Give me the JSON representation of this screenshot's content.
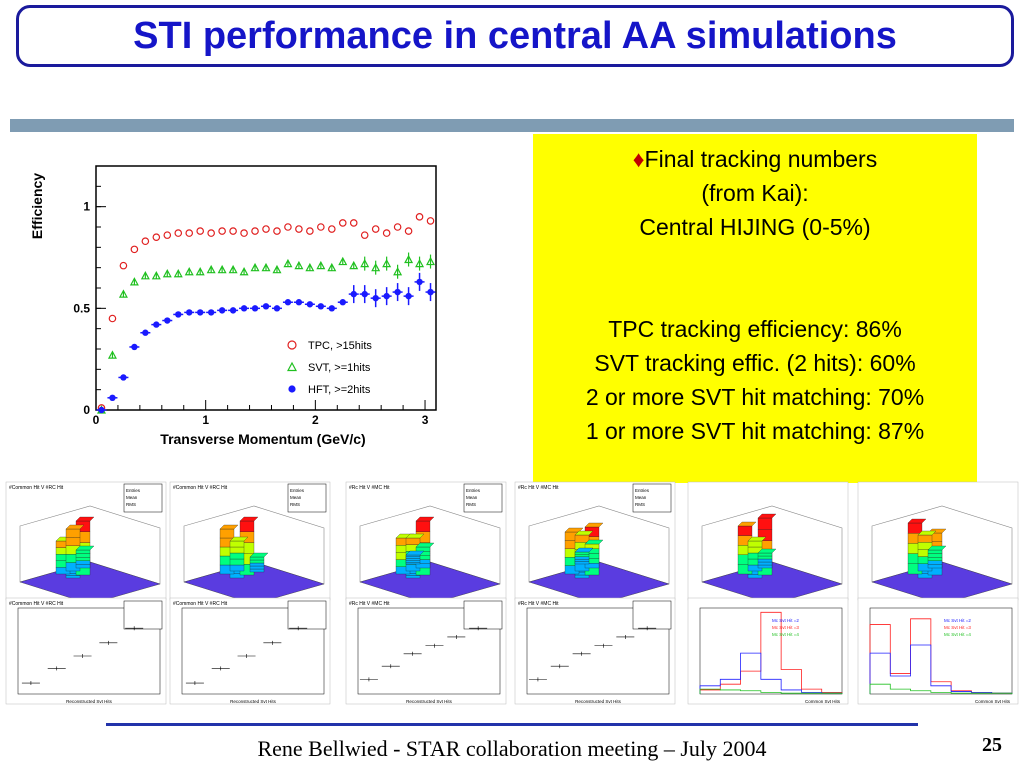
{
  "slide": {
    "title": "STI performance in central AA simulations",
    "footer": "Rene Bellwied - STAR collaboration meeting – July 2004",
    "page_number": "25"
  },
  "info": {
    "bullet": "♦",
    "lines_top": [
      "Final tracking numbers",
      "(from Kai):",
      "Central HIJING (0-5%)"
    ],
    "lines_bottom": [
      "TPC tracking efficiency: 86%",
      "SVT tracking effic. (2 hits): 60%",
      "2 or more SVT hit matching: 70%",
      "1 or more SVT hit matching: 87%"
    ],
    "background": "#ffff00"
  },
  "chart_data": {
    "type": "scatter",
    "xlabel": "Transverse Momentum (GeV/c)",
    "ylabel": "Efficiency",
    "xlim": [
      0,
      3.1
    ],
    "ylim": [
      0,
      1.2
    ],
    "xticks": [
      "0",
      "1",
      "2",
      "3"
    ],
    "yticks": [
      "0",
      "0.5",
      "1"
    ],
    "legend_position": "bottom-right",
    "series": [
      {
        "name": "TPC, >15hits",
        "marker": "open-circle",
        "color": "#e02020",
        "x": [
          0.05,
          0.15,
          0.25,
          0.35,
          0.45,
          0.55,
          0.65,
          0.75,
          0.85,
          0.95,
          1.05,
          1.15,
          1.25,
          1.35,
          1.45,
          1.55,
          1.65,
          1.75,
          1.85,
          1.95,
          2.05,
          2.15,
          2.25,
          2.35,
          2.45,
          2.55,
          2.65,
          2.75,
          2.85,
          2.95,
          3.05
        ],
        "y": [
          0.01,
          0.45,
          0.71,
          0.79,
          0.83,
          0.85,
          0.86,
          0.87,
          0.87,
          0.88,
          0.87,
          0.88,
          0.88,
          0.87,
          0.88,
          0.89,
          0.88,
          0.9,
          0.89,
          0.88,
          0.9,
          0.89,
          0.92,
          0.92,
          0.86,
          0.89,
          0.87,
          0.9,
          0.88,
          0.95,
          0.93
        ]
      },
      {
        "name": "SVT, >=1hits",
        "marker": "open-triangle",
        "color": "#20c020",
        "x": [
          0.05,
          0.15,
          0.25,
          0.35,
          0.45,
          0.55,
          0.65,
          0.75,
          0.85,
          0.95,
          1.05,
          1.15,
          1.25,
          1.35,
          1.45,
          1.55,
          1.65,
          1.75,
          1.85,
          1.95,
          2.05,
          2.15,
          2.25,
          2.35,
          2.45,
          2.55,
          2.65,
          2.75,
          2.85,
          2.95,
          3.05
        ],
        "y": [
          0.0,
          0.27,
          0.57,
          0.63,
          0.66,
          0.66,
          0.67,
          0.67,
          0.68,
          0.68,
          0.69,
          0.69,
          0.69,
          0.68,
          0.7,
          0.7,
          0.69,
          0.72,
          0.71,
          0.7,
          0.71,
          0.7,
          0.73,
          0.71,
          0.72,
          0.7,
          0.72,
          0.68,
          0.74,
          0.72,
          0.73
        ]
      },
      {
        "name": "HFT, >=2hits",
        "marker": "filled-circle",
        "color": "#1a1aff",
        "x": [
          0.05,
          0.15,
          0.25,
          0.35,
          0.45,
          0.55,
          0.65,
          0.75,
          0.85,
          0.95,
          1.05,
          1.15,
          1.25,
          1.35,
          1.45,
          1.55,
          1.65,
          1.75,
          1.85,
          1.95,
          2.05,
          2.15,
          2.25,
          2.35,
          2.45,
          2.55,
          2.65,
          2.75,
          2.85,
          2.95,
          3.05
        ],
        "y": [
          0.0,
          0.06,
          0.16,
          0.31,
          0.38,
          0.42,
          0.44,
          0.47,
          0.48,
          0.48,
          0.48,
          0.49,
          0.49,
          0.5,
          0.5,
          0.51,
          0.5,
          0.53,
          0.53,
          0.52,
          0.51,
          0.5,
          0.53,
          0.57,
          0.57,
          0.55,
          0.56,
          0.58,
          0.56,
          0.63,
          0.58
        ]
      }
    ]
  },
  "thumbnails": {
    "top_titles": [
      "#Common Hit V #RC Hit",
      "#Common Hit V #RC Hit",
      "#Rc Hit V #MC Hit",
      "#Rc Hit V #MC Hit"
    ],
    "bottom_titles": [
      "#Common Hit V #RC Hit",
      "#Common Hit V #RC Hit",
      "#Rc Hit V #MC Hit",
      "#Rc Hit V #MC Hit"
    ],
    "stats_labels": [
      "Entries",
      "Mean",
      "RMS"
    ],
    "hist_legend": [
      "Mc Svt Hit =2",
      "Mc Svt Hit =3",
      "Mc Svt Hit =4"
    ],
    "hist_xlabel": "Common Svt Hits",
    "profile_xlabel": "Reconstructed Svt Hits",
    "colors": {
      "red": "#ff2020",
      "blue": "#2020ff",
      "green": "#20c020"
    }
  }
}
